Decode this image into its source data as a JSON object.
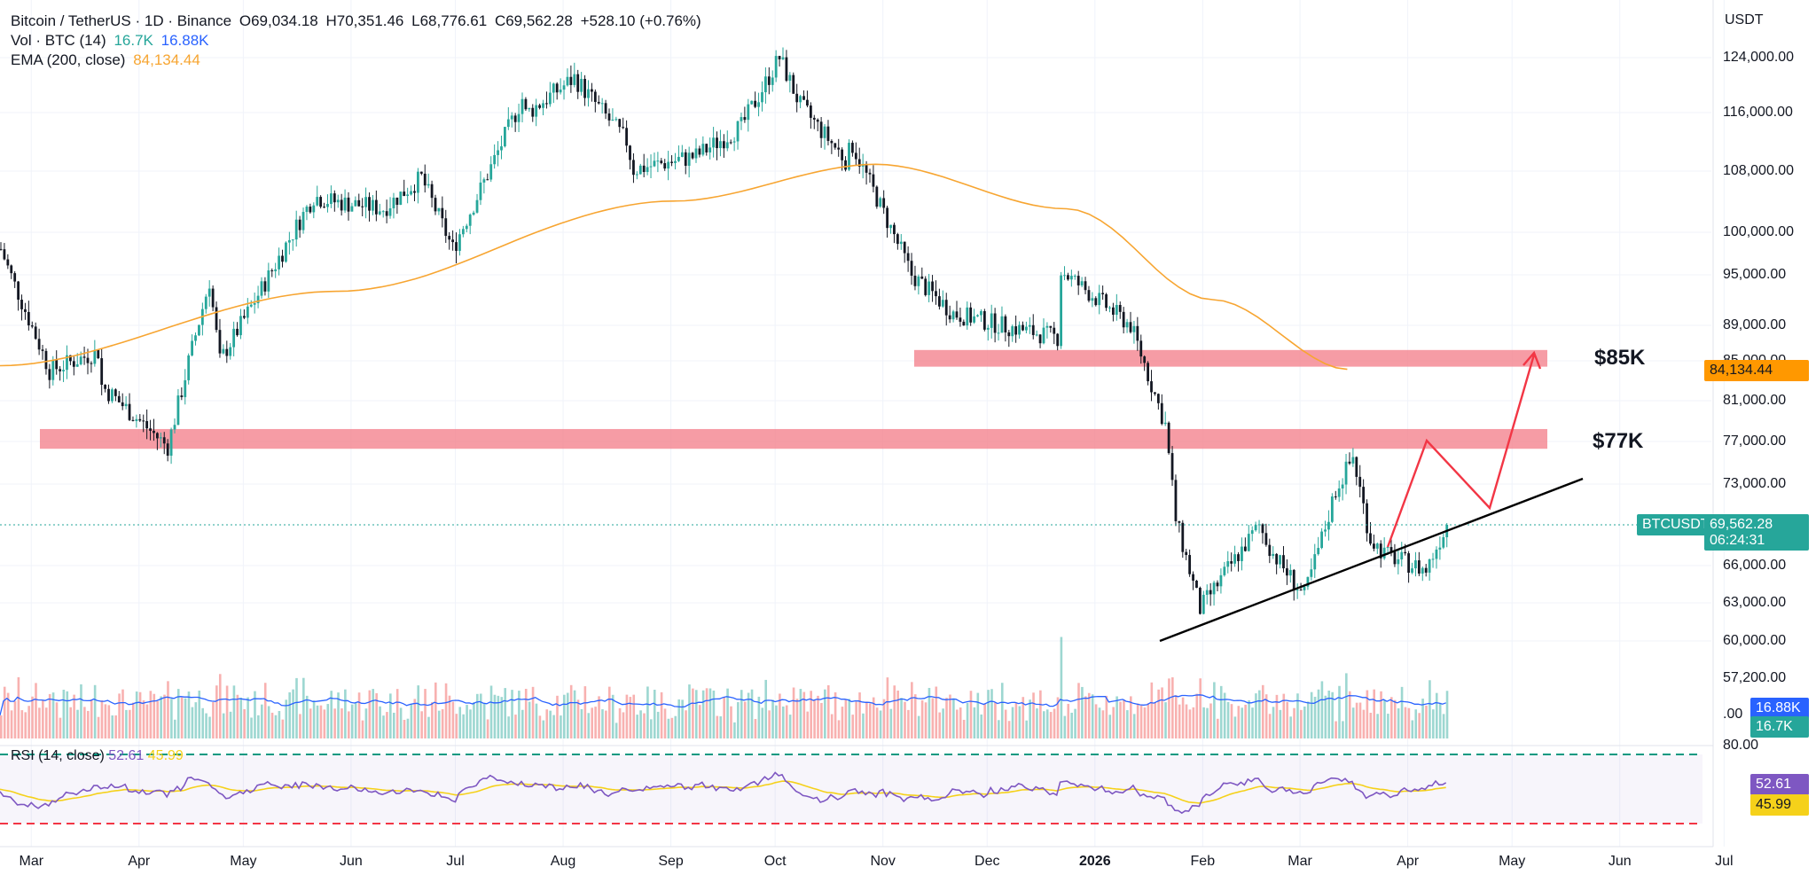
{
  "header": {
    "symbol": "Bitcoin / TetherUS · 1D · Binance",
    "open": "O69,034.18",
    "high": "H70,351.46",
    "low": "L68,776.61",
    "close": "C69,562.28",
    "change": "+528.10 (+0.76%)",
    "vol_label": "Vol · BTC (14)",
    "vol_value": "16.7K",
    "vol_ma": "16.88K",
    "ema_label": "EMA (200, close)",
    "ema_value": "84,134.44"
  },
  "rsi": {
    "label": "RSI (14, close)",
    "value": "52.61",
    "ma": "45.99",
    "upper": "80.00"
  },
  "axis": {
    "currency": "USDT",
    "price_ticks": [
      "124,000.00",
      "116,000.00",
      "108,000.00",
      "100,000.00",
      "95,000.00",
      "89,000.00",
      "85,000.00",
      "81,000.00",
      "77,000.00",
      "73,000.00",
      "66,000.00",
      "63,000.00",
      "60,000.00",
      "57,200.00",
      ".00"
    ],
    "months": [
      "Mar",
      "Apr",
      "May",
      "Jun",
      "Jul",
      "Aug",
      "Sep",
      "Oct",
      "Nov",
      "Dec",
      "2026",
      "Feb",
      "Mar",
      "Apr",
      "May",
      "Jun",
      "Jul"
    ]
  },
  "badges": {
    "ema": "84,134.44",
    "symbol": "BTCUSDT",
    "price": "69,562.28",
    "countdown": "06:24:31",
    "vol_ma": "16.88K",
    "vol": "16.7K",
    "rsi": "52.61",
    "rsi_ma": "45.99"
  },
  "zones": {
    "upper_label": "$85K",
    "lower_label": "$77K"
  },
  "colors": {
    "up": "#26a69a",
    "down": "#131722",
    "ema": "#f7a531",
    "zone": "#f4838f",
    "projection": "#f23645",
    "vol_ma": "#2962ff",
    "rsi": "#7e57c2",
    "rsi_ma": "#f5d11a"
  },
  "chart_data": {
    "type": "candlestick",
    "title": "Bitcoin / TetherUS · 1D · Binance",
    "y_scale": "log",
    "ylim": [
      57200,
      127000
    ],
    "months": [
      "Mar",
      "Apr",
      "May",
      "Jun",
      "Jul",
      "Aug",
      "Sep",
      "Oct",
      "Nov",
      "Dec",
      "Jan",
      "Feb",
      "Mar",
      "Apr"
    ],
    "monthly_close": [
      82500,
      94200,
      104600,
      107100,
      115800,
      108200,
      114000,
      109500,
      90400,
      87600,
      78600,
      67000,
      68300,
      69562.28
    ],
    "ema200_path": [
      [
        0,
        84500
      ],
      [
        3,
        93000
      ],
      [
        6,
        104000
      ],
      [
        7.8,
        108900
      ],
      [
        9.5,
        103000
      ],
      [
        10.8,
        92000
      ],
      [
        12,
        84134.44
      ]
    ],
    "support_zones": [
      {
        "label": "$85K",
        "low": 84400,
        "high": 86200
      },
      {
        "label": "$77K",
        "low": 76300,
        "high": 78200
      }
    ],
    "trendline": [
      [
        60000,
        "early Feb"
      ],
      [
        73500,
        "mid Jun"
      ]
    ],
    "projection": [
      69562.28,
      77000,
      71500,
      85000
    ],
    "rsi_levels": [
      80,
      20
    ]
  }
}
